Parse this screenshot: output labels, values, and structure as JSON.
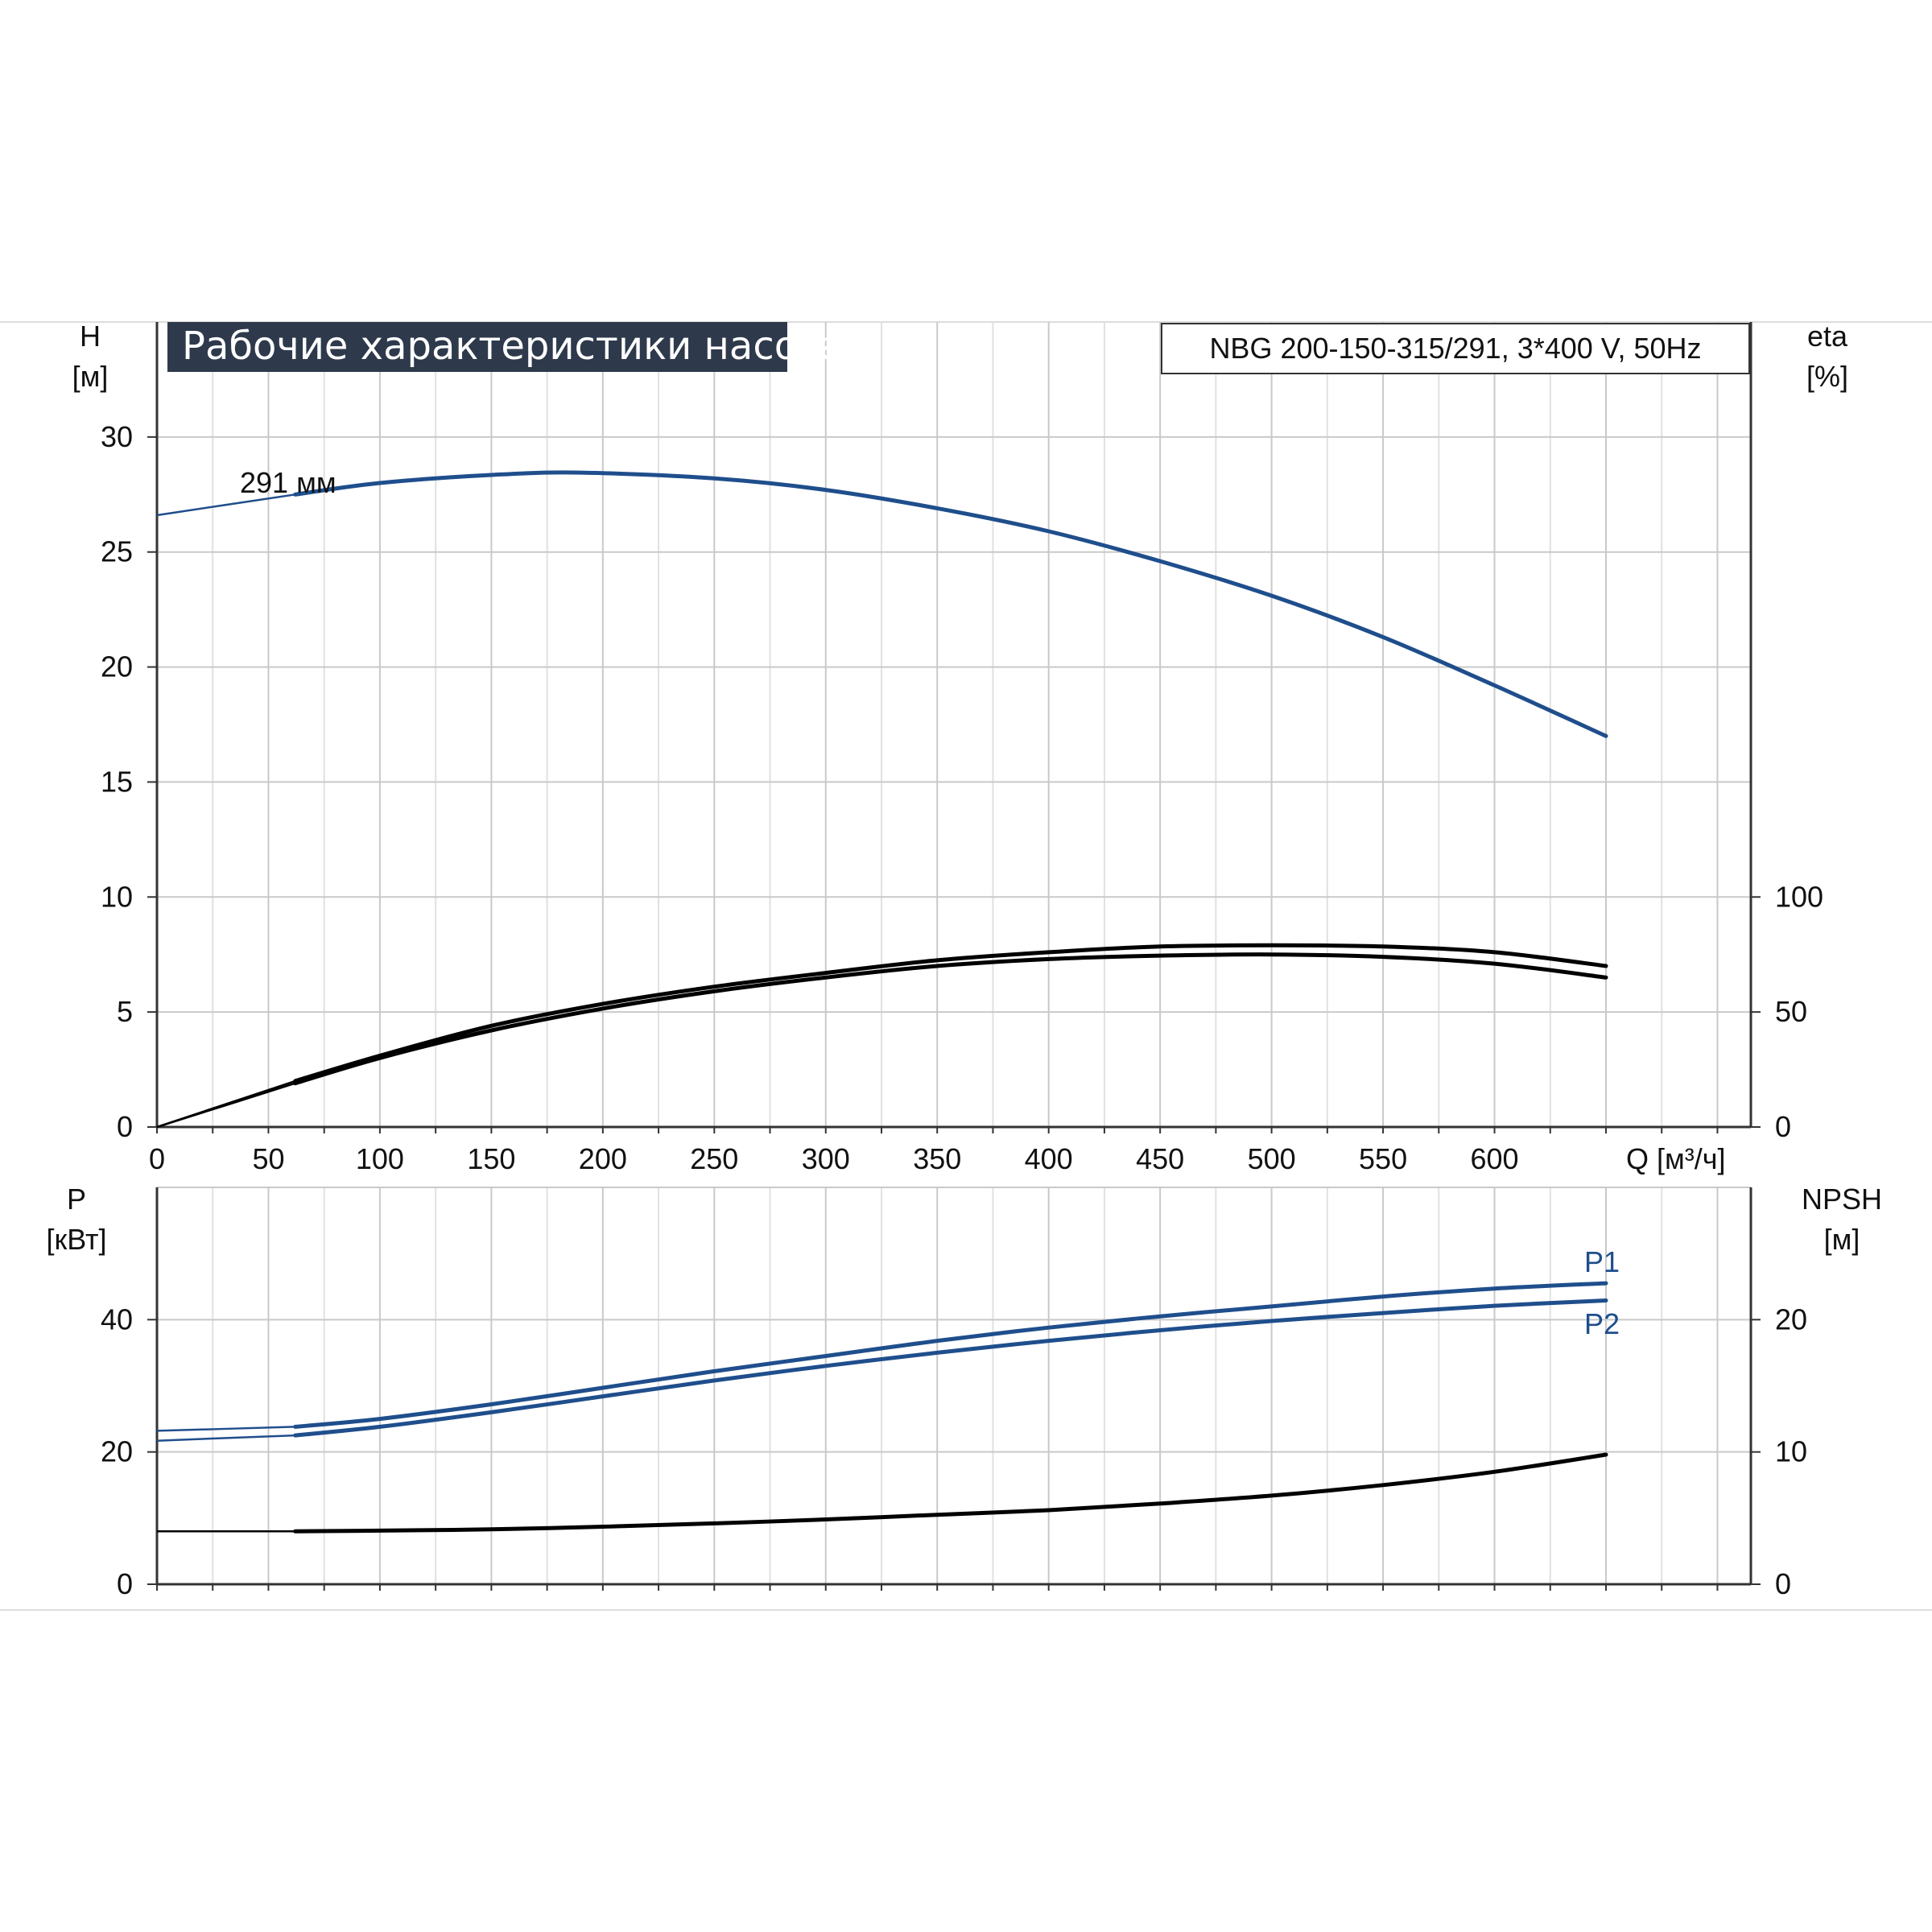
{
  "chart_data": [
    {
      "id": "performance",
      "type": "line",
      "title": "Рабочие характеристики насоса",
      "model": "NBG 200-150-315/291, 3*400 V, 50Hz",
      "xlabel": "Q [м³/ч]",
      "ylabel_left": "H\n[м]",
      "ylabel_right": "eta\n[%]",
      "x_ticks": [
        0,
        50,
        100,
        150,
        200,
        250,
        300,
        350,
        400,
        450,
        500,
        550,
        600
      ],
      "xlim": [
        0,
        715
      ],
      "ylim_left": [
        0,
        35
      ],
      "y_ticks_left": [
        0,
        5,
        10,
        15,
        20,
        25,
        30
      ],
      "ylim_right": [
        0,
        350
      ],
      "y_ticks_right": [
        0,
        50,
        100
      ],
      "grid": true,
      "annotations": [
        {
          "text": "291 мм",
          "x": 63,
          "y": 27.7
        }
      ],
      "series": [
        {
          "name": "291 мм",
          "axis": "left",
          "color": "#1f4e8c",
          "x": [
            0,
            62,
            100,
            150,
            190,
            250,
            300,
            350,
            400,
            450,
            500,
            550,
            600,
            650
          ],
          "y": [
            26.6,
            27.5,
            28.0,
            28.35,
            28.45,
            28.2,
            27.7,
            26.9,
            25.9,
            24.6,
            23.1,
            21.3,
            19.2,
            17.0
          ]
        },
        {
          "axis": "right",
          "color": "#000000",
          "x": [
            0,
            62,
            100,
            150,
            200,
            250,
            300,
            350,
            400,
            450,
            500,
            550,
            600,
            650
          ],
          "y": [
            0,
            20,
            31,
            44,
            53.5,
            61,
            67,
            72.5,
            76,
            78.5,
            79,
            78.5,
            76,
            70
          ]
        },
        {
          "axis": "right",
          "color": "#000000",
          "x": [
            0,
            62,
            100,
            150,
            200,
            250,
            300,
            350,
            400,
            450,
            500,
            550,
            600,
            650
          ],
          "y": [
            0,
            19,
            30,
            42,
            51.5,
            59,
            65,
            70,
            73,
            74.5,
            75,
            74,
            71,
            65
          ]
        }
      ]
    },
    {
      "id": "power",
      "type": "line",
      "ylabel_left": "P\n[кВт]",
      "ylabel_right": "NPSH\n[м]",
      "xlim": [
        0,
        715
      ],
      "ylim_left": [
        0,
        60
      ],
      "y_ticks_left": [
        0,
        20,
        40
      ],
      "ylim_right": [
        0,
        30
      ],
      "y_ticks_right": [
        0,
        10,
        20
      ],
      "grid": true,
      "series": [
        {
          "name": "P1",
          "axis": "left",
          "color": "#1f4e8c",
          "x": [
            0,
            62,
            100,
            150,
            200,
            250,
            300,
            350,
            400,
            450,
            500,
            550,
            600,
            650
          ],
          "y": [
            23.2,
            23.8,
            25.0,
            27.2,
            29.7,
            32.2,
            34.5,
            36.8,
            38.8,
            40.5,
            42.0,
            43.5,
            44.7,
            45.5
          ]
        },
        {
          "name": "P2",
          "axis": "left",
          "color": "#1f4e8c",
          "x": [
            0,
            62,
            100,
            150,
            200,
            250,
            300,
            350,
            400,
            450,
            500,
            550,
            600,
            650
          ],
          "y": [
            21.7,
            22.5,
            23.8,
            26.0,
            28.4,
            30.8,
            33.0,
            35.0,
            36.8,
            38.4,
            39.8,
            41.0,
            42.1,
            42.9
          ]
        },
        {
          "axis": "right",
          "color": "#000000",
          "x": [
            0,
            62,
            100,
            150,
            200,
            250,
            300,
            350,
            400,
            450,
            500,
            550,
            600,
            650
          ],
          "y": [
            4.0,
            4.0,
            4.05,
            4.15,
            4.35,
            4.6,
            4.9,
            5.25,
            5.6,
            6.1,
            6.7,
            7.5,
            8.5,
            9.8
          ]
        }
      ]
    }
  ]
}
